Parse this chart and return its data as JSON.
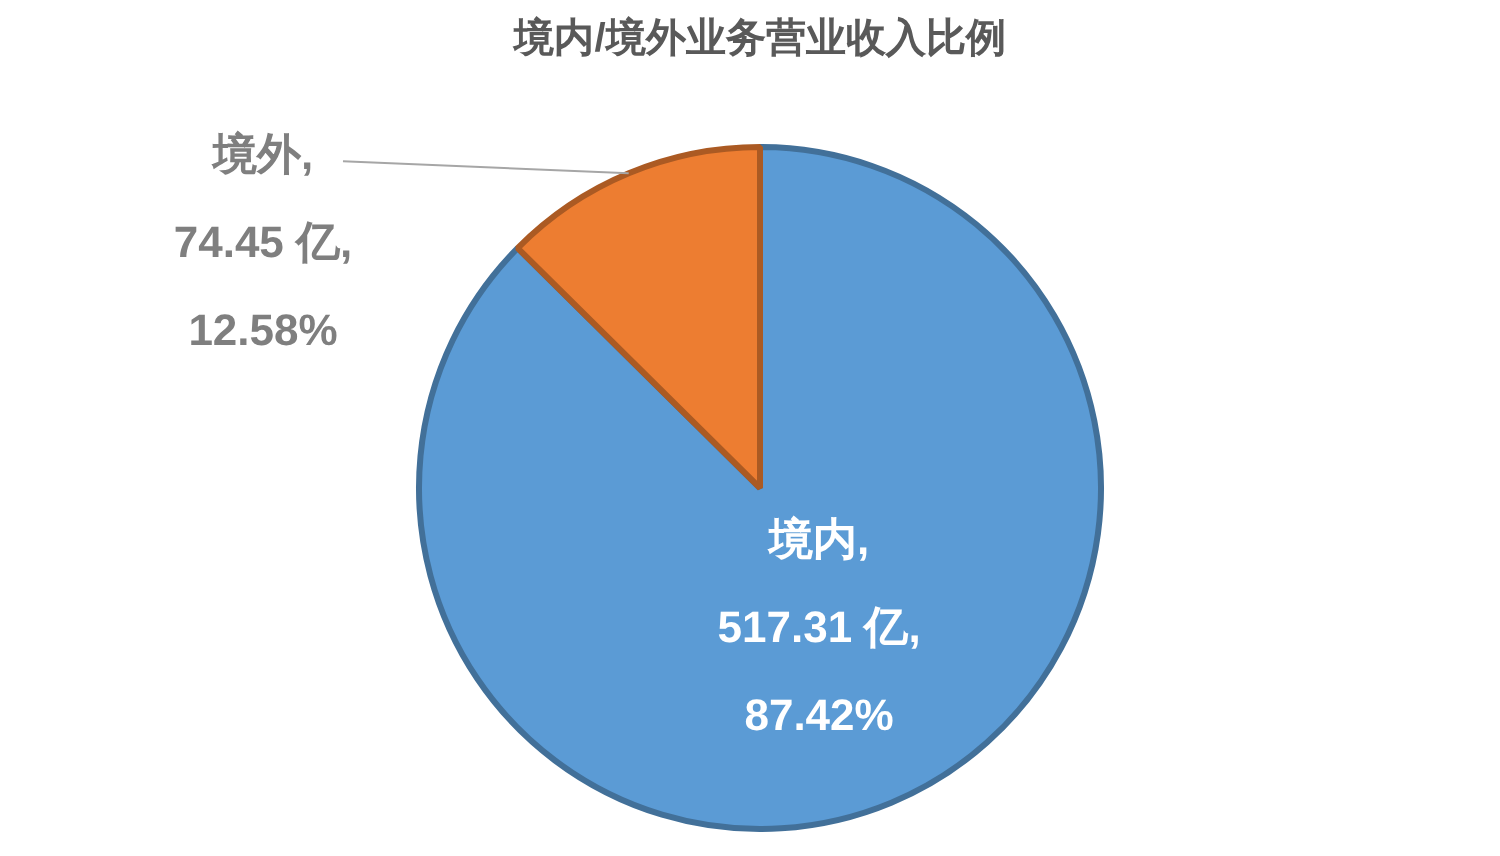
{
  "chart_data": {
    "type": "pie",
    "title": "境内/境外业务营业收入比例",
    "categories": [
      "境内",
      "境外"
    ],
    "values": [
      517.31,
      74.45
    ],
    "colors": [
      "#5b9bd5",
      "#ed7d31"
    ],
    "value_labels": [
      ",\n517.31 亿,\n87.42%",
      ",\n74.45 亿,\n12.58%"
    ],
    "legend": false
  }
}
